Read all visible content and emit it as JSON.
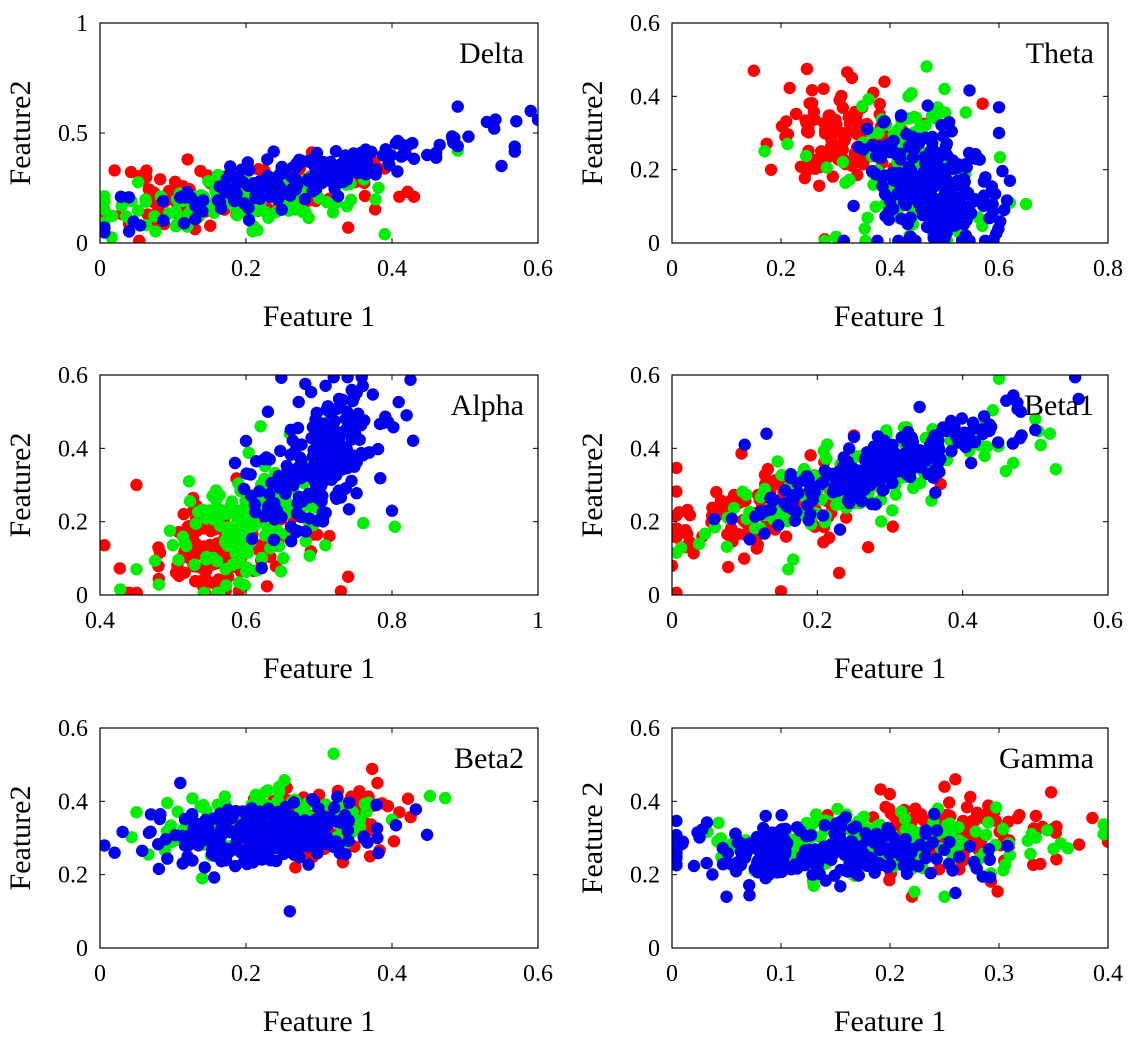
{
  "colors": {
    "red": "#ff0000",
    "green": "#00ee00",
    "blue": "#0000ee"
  },
  "chart_data": [
    {
      "type": "scatter",
      "title": "Delta",
      "xlabel": "Feature 1",
      "ylabel": "Feature2",
      "xlim": [
        0,
        0.6
      ],
      "ylim": [
        0,
        1
      ],
      "xticks": [
        "0",
        "0.2",
        "0.4",
        "0.6"
      ],
      "yticks": [
        "0",
        "0.5",
        "1"
      ],
      "xtick_values": [
        0,
        0.2,
        0.4,
        0.6
      ],
      "ytick_values": [
        0,
        0.5,
        1
      ],
      "grid": false,
      "legend": "none",
      "clusters": [
        {
          "color": "red",
          "n": 110,
          "cx": 0.18,
          "cy": 0.22,
          "sx": 0.09,
          "sy": 0.07,
          "rho": 0.4,
          "seed": 11,
          "extra": [
            [
              0.02,
              0.33
            ],
            [
              0.12,
              0.38
            ],
            [
              0.34,
              0.07
            ],
            [
              0.43,
              0.21
            ],
            [
              0.41,
              0.21
            ]
          ]
        },
        {
          "color": "green",
          "n": 110,
          "cx": 0.17,
          "cy": 0.18,
          "sx": 0.09,
          "sy": 0.06,
          "rho": 0.4,
          "seed": 12,
          "extra": [
            [
              0.39,
              0.04
            ],
            [
              0.49,
              0.42
            ]
          ]
        },
        {
          "color": "blue",
          "n": 190,
          "cx": 0.26,
          "cy": 0.29,
          "sx": 0.12,
          "sy": 0.1,
          "rho": 0.85,
          "seed": 13,
          "extra": [
            [
              0.49,
              0.62
            ],
            [
              0.59,
              0.6
            ],
            [
              0.6,
              0.56
            ],
            [
              0.55,
              0.35
            ],
            [
              0.53,
              0.55
            ],
            [
              0.54,
              0.52
            ]
          ]
        }
      ]
    },
    {
      "type": "scatter",
      "title": "Theta",
      "xlabel": "Feature 1",
      "ylabel": "Feature2",
      "xlim": [
        0,
        0.8
      ],
      "ylim": [
        0,
        0.6
      ],
      "xticks": [
        "0",
        "0.2",
        "0.4",
        "0.6",
        "0.8"
      ],
      "yticks": [
        "0",
        "0.2",
        "0.4",
        "0.6"
      ],
      "xtick_values": [
        0,
        0.2,
        0.4,
        0.6,
        0.8
      ],
      "ytick_values": [
        0,
        0.2,
        0.4,
        0.6
      ],
      "grid": false,
      "legend": "none",
      "clusters": [
        {
          "color": "red",
          "n": 120,
          "cx": 0.31,
          "cy": 0.29,
          "sx": 0.06,
          "sy": 0.07,
          "rho": 0.0,
          "seed": 21,
          "extra": [
            [
              0.15,
              0.47
            ],
            [
              0.28,
              0.01
            ],
            [
              0.33,
              0.45
            ],
            [
              0.39,
              0.44
            ],
            [
              0.57,
              0.38
            ]
          ]
        },
        {
          "color": "green",
          "n": 120,
          "cx": 0.43,
          "cy": 0.2,
          "sx": 0.07,
          "sy": 0.1,
          "rho": 0.0,
          "seed": 22,
          "extra": [
            [
              0.17,
              0.25
            ],
            [
              0.5,
              0.42
            ],
            [
              0.62,
              0.11
            ]
          ]
        },
        {
          "color": "blue",
          "n": 220,
          "cx": 0.47,
          "cy": 0.15,
          "sx": 0.06,
          "sy": 0.09,
          "rho": -0.2,
          "seed": 23,
          "extra": [
            [
              0.6,
              0.37
            ],
            [
              0.6,
              0.3
            ],
            [
              0.62,
              0.17
            ],
            [
              0.59,
              0.01
            ]
          ]
        }
      ]
    },
    {
      "type": "scatter",
      "title": "Alpha",
      "xlabel": "Feature 1",
      "ylabel": "Feature2",
      "xlim": [
        0.4,
        1
      ],
      "ylim": [
        0,
        0.6
      ],
      "xticks": [
        "0.4",
        "0.6",
        "0.8",
        "1"
      ],
      "yticks": [
        "0",
        "0.2",
        "0.4",
        "0.6"
      ],
      "xtick_values": [
        0.4,
        0.6,
        0.8,
        1
      ],
      "ytick_values": [
        0,
        0.2,
        0.4,
        0.6
      ],
      "grid": false,
      "legend": "none",
      "clusters": [
        {
          "color": "red",
          "n": 150,
          "cx": 0.57,
          "cy": 0.13,
          "sx": 0.05,
          "sy": 0.06,
          "rho": 0.2,
          "seed": 31,
          "extra": [
            [
              0.45,
              0.3
            ],
            [
              0.73,
              0.01
            ],
            [
              0.74,
              0.05
            ]
          ]
        },
        {
          "color": "green",
          "n": 160,
          "cx": 0.6,
          "cy": 0.2,
          "sx": 0.055,
          "sy": 0.09,
          "rho": 0.5,
          "seed": 32,
          "extra": [
            [
              0.45,
              0.07
            ],
            [
              0.62,
              0.46
            ],
            [
              0.66,
              0.44
            ]
          ]
        },
        {
          "color": "blue",
          "n": 220,
          "cx": 0.7,
          "cy": 0.36,
          "sx": 0.045,
          "sy": 0.1,
          "rho": 0.45,
          "seed": 33,
          "extra": [
            [
              0.82,
              0.49
            ],
            [
              0.76,
              0.57
            ],
            [
              0.8,
              0.23
            ],
            [
              0.63,
              0.5
            ],
            [
              0.6,
              0.42
            ]
          ]
        }
      ]
    },
    {
      "type": "scatter",
      "title": "Beta1",
      "xlabel": "Feature 1",
      "ylabel": "Feature2",
      "xlim": [
        0,
        0.6
      ],
      "ylim": [
        0,
        0.6
      ],
      "xticks": [
        "0",
        "0.2",
        "0.4",
        "0.6"
      ],
      "yticks": [
        "0",
        "0.2",
        "0.4",
        "0.6"
      ],
      "xtick_values": [
        0,
        0.2,
        0.4,
        0.6
      ],
      "ytick_values": [
        0,
        0.2,
        0.4,
        0.6
      ],
      "grid": false,
      "legend": "none",
      "clusters": [
        {
          "color": "red",
          "n": 120,
          "cx": 0.14,
          "cy": 0.24,
          "sx": 0.07,
          "sy": 0.07,
          "rho": 0.4,
          "seed": 41,
          "extra": [
            [
              0.0,
              0.08
            ],
            [
              0.15,
              0.01
            ],
            [
              0.23,
              0.06
            ],
            [
              0.27,
              0.13
            ]
          ]
        },
        {
          "color": "green",
          "n": 150,
          "cx": 0.24,
          "cy": 0.31,
          "sx": 0.11,
          "sy": 0.08,
          "rho": 0.75,
          "seed": 42,
          "extra": [
            [
              0.45,
              0.59
            ],
            [
              0.5,
              0.48
            ],
            [
              0.52,
              0.44
            ],
            [
              0.16,
              0.07
            ]
          ]
        },
        {
          "color": "blue",
          "n": 240,
          "cx": 0.29,
          "cy": 0.34,
          "sx": 0.08,
          "sy": 0.07,
          "rho": 0.8,
          "seed": 43,
          "extra": [
            [
              0.1,
              0.41
            ],
            [
              0.13,
              0.44
            ],
            [
              0.48,
              0.5
            ],
            [
              0.46,
              0.53
            ],
            [
              0.5,
              0.45
            ]
          ]
        }
      ]
    },
    {
      "type": "scatter",
      "title": "Beta2",
      "xlabel": "Feature 1",
      "ylabel": "Feature2",
      "xlim": [
        0,
        0.6
      ],
      "ylim": [
        0,
        0.6
      ],
      "xticks": [
        "0",
        "0.2",
        "0.4",
        "0.6"
      ],
      "yticks": [
        "0",
        "0.2",
        "0.4",
        "0.6"
      ],
      "xtick_values": [
        0,
        0.2,
        0.4,
        0.6
      ],
      "ytick_values": [
        0,
        0.2,
        0.4,
        0.6
      ],
      "grid": false,
      "legend": "none",
      "clusters": [
        {
          "color": "red",
          "n": 130,
          "cx": 0.28,
          "cy": 0.34,
          "sx": 0.05,
          "sy": 0.05,
          "rho": 0.2,
          "seed": 51,
          "extra": [
            [
              0.41,
              0.37
            ],
            [
              0.38,
              0.45
            ],
            [
              0.37,
              0.25
            ]
          ]
        },
        {
          "color": "green",
          "n": 140,
          "cx": 0.24,
          "cy": 0.35,
          "sx": 0.07,
          "sy": 0.045,
          "rho": 0.2,
          "seed": 52,
          "extra": [
            [
              0.05,
              0.37
            ],
            [
              0.14,
              0.19
            ],
            [
              0.32,
              0.53
            ],
            [
              0.4,
              0.35
            ]
          ]
        },
        {
          "color": "blue",
          "n": 250,
          "cx": 0.22,
          "cy": 0.31,
          "sx": 0.07,
          "sy": 0.04,
          "rho": 0.1,
          "seed": 53,
          "extra": [
            [
              0.02,
              0.26
            ],
            [
              0.26,
              0.1
            ],
            [
              0.11,
              0.45
            ],
            [
              0.38,
              0.3
            ]
          ]
        }
      ]
    },
    {
      "type": "scatter",
      "title": "Gamma",
      "xlabel": "Feature 1",
      "ylabel": "Feature 2",
      "xlim": [
        0,
        0.4
      ],
      "ylim": [
        0,
        0.6
      ],
      "xticks": [
        "0",
        "0.1",
        "0.2",
        "0.3",
        "0.4"
      ],
      "yticks": [
        "0",
        "0.2",
        "0.4",
        "0.6"
      ],
      "xtick_values": [
        0,
        0.1,
        0.2,
        0.3,
        0.4
      ],
      "ytick_values": [
        0,
        0.2,
        0.4,
        0.6
      ],
      "grid": false,
      "legend": "none",
      "clusters": [
        {
          "color": "red",
          "n": 140,
          "cx": 0.24,
          "cy": 0.31,
          "sx": 0.06,
          "sy": 0.05,
          "rho": 0.0,
          "seed": 61,
          "extra": [
            [
              0.4,
              0.29
            ],
            [
              0.34,
              0.33
            ],
            [
              0.26,
              0.46
            ],
            [
              0.25,
              0.44
            ]
          ]
        },
        {
          "color": "green",
          "n": 150,
          "cx": 0.2,
          "cy": 0.29,
          "sx": 0.08,
          "sy": 0.045,
          "rho": 0.0,
          "seed": 62,
          "extra": [
            [
              0.35,
              0.27
            ],
            [
              0.25,
              0.14
            ],
            [
              0.13,
              0.17
            ]
          ]
        },
        {
          "color": "blue",
          "n": 240,
          "cx": 0.14,
          "cy": 0.26,
          "sx": 0.07,
          "sy": 0.04,
          "rho": 0.0,
          "seed": 63,
          "extra": [
            [
              0.0,
              0.25
            ],
            [
              0.01,
              0.29
            ],
            [
              0.05,
              0.14
            ],
            [
              0.26,
              0.15
            ]
          ]
        }
      ]
    }
  ]
}
